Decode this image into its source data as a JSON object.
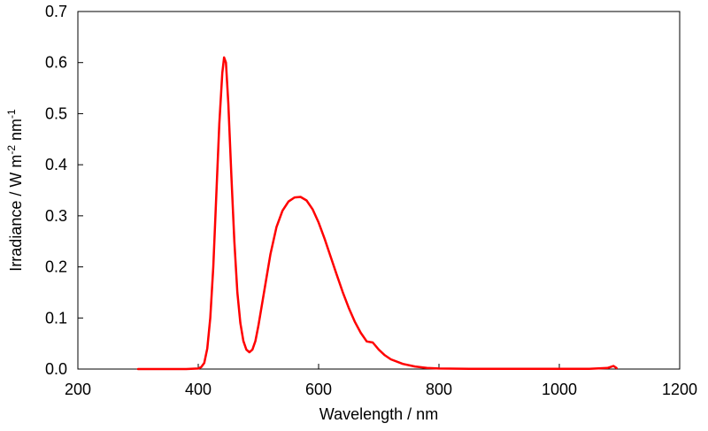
{
  "chart_data": {
    "type": "line",
    "title": "",
    "xlabel": "Wavelength / nm",
    "ylabel": {
      "base": "Irradiance / W m",
      "exp1": "-2",
      "mid": " nm",
      "exp2": "-1"
    },
    "xlim": [
      200,
      1200
    ],
    "ylim": [
      0,
      0.7
    ],
    "xticks": [
      "200",
      "400",
      "600",
      "800",
      "1000",
      "1200"
    ],
    "yticks": [
      "0.0",
      "0.1",
      "0.2",
      "0.3",
      "0.4",
      "0.5",
      "0.6",
      "0.7"
    ],
    "grid": false,
    "legend": "none",
    "series": [
      {
        "color": "#ff0000",
        "x": [
          300,
          380,
          400,
          405,
          410,
          415,
          420,
          425,
          430,
          435,
          440,
          443,
          446,
          450,
          455,
          460,
          465,
          470,
          475,
          480,
          485,
          490,
          495,
          500,
          510,
          520,
          530,
          540,
          550,
          560,
          570,
          580,
          590,
          600,
          610,
          620,
          630,
          640,
          650,
          660,
          670,
          680,
          690,
          695,
          700,
          710,
          720,
          740,
          760,
          780,
          800,
          850,
          900,
          1000,
          1050,
          1080,
          1085,
          1090,
          1095
        ],
        "y": [
          0.0,
          0.0,
          0.001,
          0.004,
          0.012,
          0.04,
          0.1,
          0.2,
          0.34,
          0.48,
          0.58,
          0.61,
          0.6,
          0.52,
          0.38,
          0.25,
          0.15,
          0.09,
          0.055,
          0.038,
          0.033,
          0.038,
          0.055,
          0.085,
          0.155,
          0.225,
          0.278,
          0.31,
          0.328,
          0.336,
          0.337,
          0.33,
          0.313,
          0.287,
          0.255,
          0.22,
          0.185,
          0.151,
          0.12,
          0.093,
          0.071,
          0.054,
          0.052,
          0.045,
          0.038,
          0.027,
          0.019,
          0.01,
          0.005,
          0.002,
          0.001,
          0.0005,
          0.0003,
          0.0003,
          0.0005,
          0.002,
          0.004,
          0.006,
          0.002
        ]
      }
    ]
  }
}
